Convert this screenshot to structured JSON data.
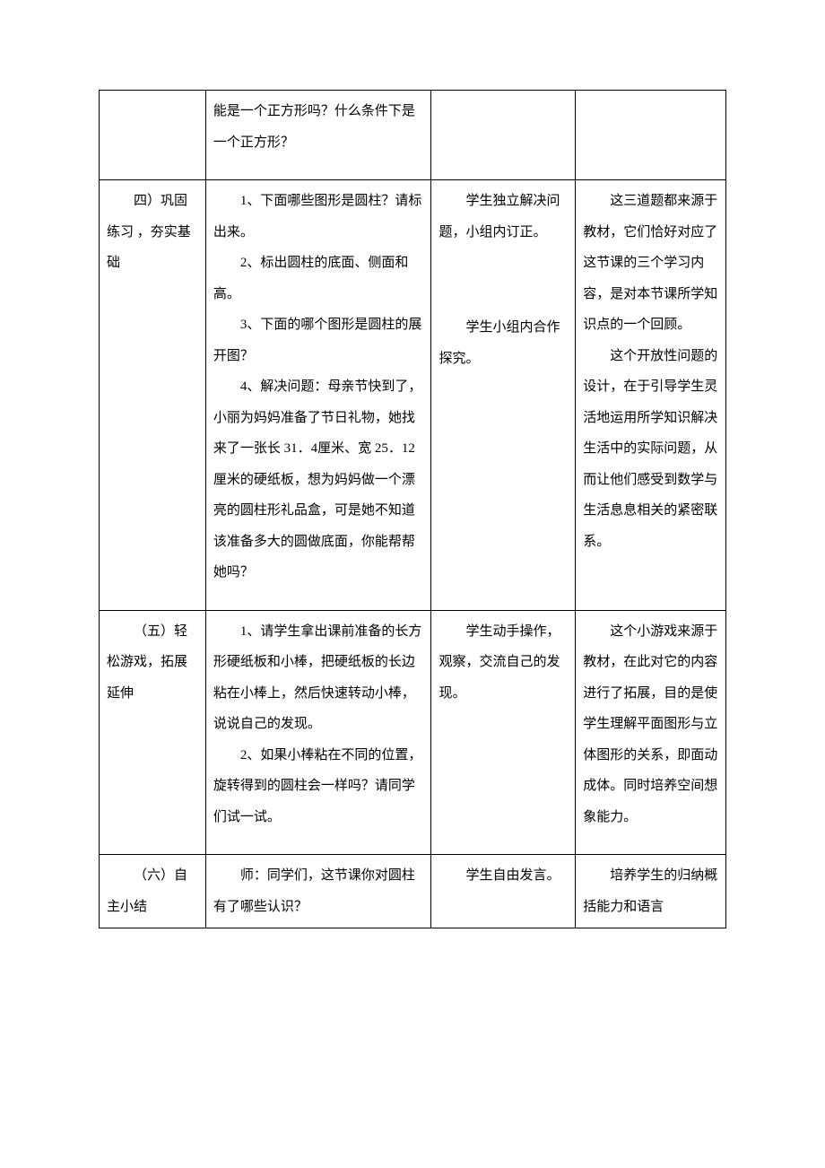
{
  "row1": {
    "col2_p1": "能是一个正方形吗？什么条件下是一个正方形？"
  },
  "row2": {
    "col1_p1": "四）巩固练习 ，夯实基础",
    "col2_p1": "1、下面哪些图形是圆柱？请标出来。",
    "col2_p2": "2、标出圆柱的底面、侧面和高。",
    "col2_p3": "3、下面的哪个图形是圆柱的展开图？",
    "col2_p4": "4、解决问题：母亲节快到了，小丽为妈妈准备了节日礼物，她找来了一张长 31．4厘米、宽 25．12 厘米的硬纸板，想为妈妈做一个漂亮的圆柱形礼品盒，可是她不知道该准备多大的圆做底面，你能帮帮她吗？",
    "col3_p1": "学生独立解决问题，小组内订正。",
    "col3_p2": "学生小组内合作探究。",
    "col4_p1": "这三道题都来源于教材，它们恰好对应了这节课的三个学习内容，是对本节课所学知识点的一个回顾。",
    "col4_p2": "这个开放性问题的设计，在于引导学生灵活地运用所学知识解决生活中的实际问题，从而让他们感受到数学与生活息息相关的紧密联系。"
  },
  "row3": {
    "col1_p1": "（五）轻松游戏，拓展延伸",
    "col2_p1": "1、请学生拿出课前准备的长方形硬纸板和小棒，把硬纸板的长边粘在小棒上，然后快速转动小棒，说说自己的发现。",
    "col2_p2": "2、如果小棒粘在不同的位置，旋转得到的圆柱会一样吗？请同学们试一试。",
    "col3_p1": "学生动手操作，观察，交流自己的发现。",
    "col4_p1": "这个小游戏来源于教材，在此对它的内容进行了拓展，目的是使学生理解平面图形与立体图形的关系，即面动成体。同时培养空间想象能力。"
  },
  "row4": {
    "col1_p1": "（六）自主小结",
    "col2_p1": "师：同学们，这节课你对圆柱有了哪些认识？",
    "col3_p1": "学生自由发言。",
    "col4_p1": "培养学生的归纳概括能力和语言"
  }
}
